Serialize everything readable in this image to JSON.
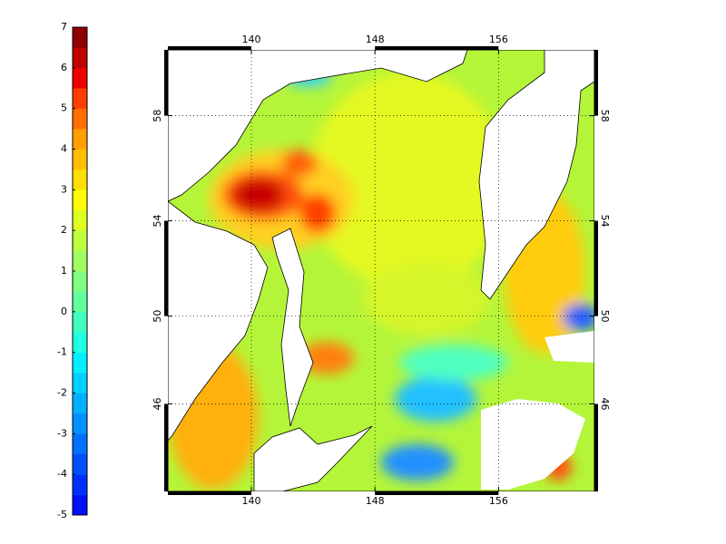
{
  "colorbar": {
    "lim": [
      -5,
      7
    ],
    "ticks": [
      -5,
      -4,
      -3,
      -2,
      -1,
      0,
      1,
      2,
      3,
      4,
      5,
      6,
      7
    ],
    "colors": [
      "#0010ff",
      "#0030ff",
      "#0050ff",
      "#0070ff",
      "#0090ff",
      "#00b0ff",
      "#00d0ff",
      "#00f0ff",
      "#20ffdf",
      "#40ffbf",
      "#60ff9f",
      "#80ff80",
      "#9fff60",
      "#bfff40",
      "#dfff20",
      "#ffff00",
      "#ffdf00",
      "#ffbf00",
      "#ff9f00",
      "#ff6f00",
      "#ff3f00",
      "#ef0000",
      "#bf0000",
      "#8f0000"
    ]
  },
  "map": {
    "projection": "mercator",
    "xlim": [
      134.6,
      162.2
    ],
    "ylim": [
      41.7,
      60.3
    ],
    "xticks": [
      140,
      148,
      156
    ],
    "yticks": [
      46,
      50,
      54,
      58
    ],
    "grid": true
  }
}
